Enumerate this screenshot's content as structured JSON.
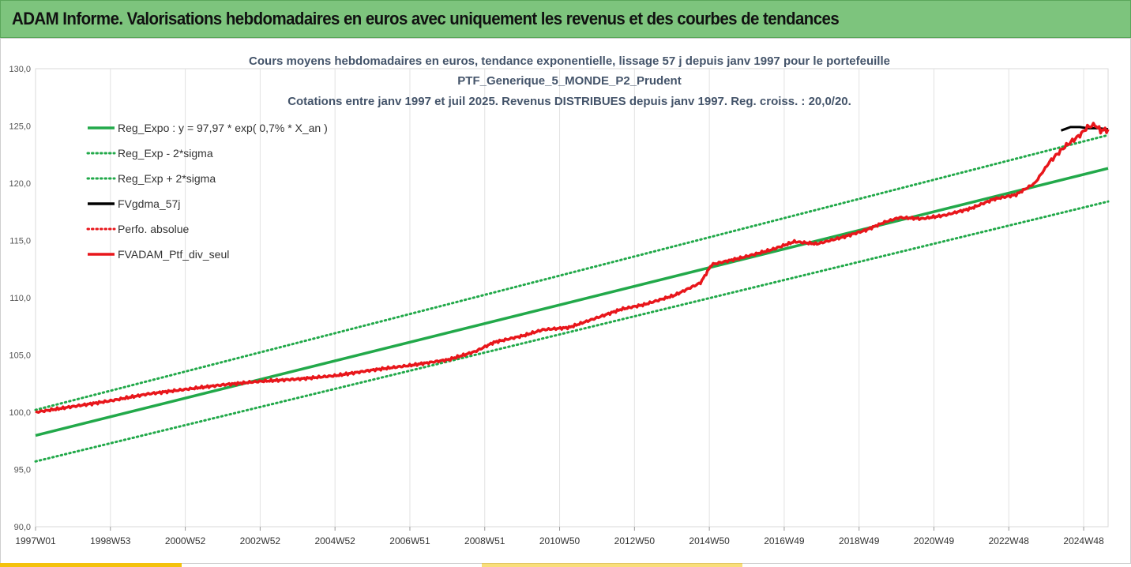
{
  "header": {
    "title": "ADAM Informe. Valorisations hebdomadaires en euros avec uniquement les revenus et des courbes de tendances"
  },
  "chart_data": {
    "type": "line",
    "title_lines": [
      "Cours moyens hebdomadaires en euros, tendance exponentielle, lissage 57 j depuis janv 1997 pour le portefeuille",
      "PTF_Generique_5_MONDE_P2_Prudent",
      "Cotations entre janv 1997 et juil 2025. Revenus DISTRIBUES depuis janv 1997. Reg. croiss. : 20,0/20."
    ],
    "ylim": [
      90,
      130
    ],
    "y_ticks": [
      "90,0",
      "95,0",
      "100,0",
      "105,0",
      "110,0",
      "115,0",
      "120,0",
      "125,0",
      "130,0"
    ],
    "x_ticks": [
      "1997W01",
      "1998W53",
      "2000W52",
      "2002W52",
      "2004W52",
      "2006W51",
      "2008W51",
      "2010W50",
      "2012W50",
      "2014W50",
      "2016W49",
      "2018W49",
      "2020W49",
      "2022W48",
      "2024W48"
    ],
    "x_range_years": [
      1997.0,
      2025.55
    ],
    "grid": "vertical",
    "legend_position": "top-left",
    "colors": {
      "trend": "#22a94a",
      "band": "#22a94a",
      "smoothed": "#000000",
      "perf": "#e8161b",
      "portfolio": "#e8161b"
    },
    "series": [
      {
        "name": "Reg_Expo : y = 97,97 * exp( 0,7% *  X_an )",
        "style": "solid-thick",
        "role": "trend",
        "points": [
          [
            1997.0,
            97.97
          ],
          [
            2025.55,
            121.3
          ]
        ]
      },
      {
        "name": "Reg_Exp - 2*sigma",
        "style": "dotted",
        "role": "band",
        "points": [
          [
            1997.0,
            95.7
          ],
          [
            2025.55,
            118.4
          ]
        ]
      },
      {
        "name": "Reg_Exp + 2*sigma",
        "style": "dotted",
        "role": "band",
        "points": [
          [
            1997.0,
            100.2
          ],
          [
            2025.55,
            124.2
          ]
        ]
      },
      {
        "name": "FVgdma_57j",
        "style": "solid-thick",
        "role": "smoothed",
        "points": [
          [
            2024.3,
            124.6
          ],
          [
            2024.55,
            124.9
          ],
          [
            2024.8,
            124.9
          ],
          [
            2025.0,
            124.8
          ],
          [
            2025.3,
            124.8
          ],
          [
            2025.55,
            124.7
          ]
        ]
      },
      {
        "name": "Perfo. absolue",
        "style": "dotted",
        "role": "perf",
        "points": []
      },
      {
        "name": "FVADAM_Ptf_div_seul",
        "style": "solid-thick",
        "role": "portfolio",
        "points": [
          [
            1997.0,
            100.0
          ],
          [
            1998.0,
            100.5
          ],
          [
            1999.0,
            101.0
          ],
          [
            2000.0,
            101.6
          ],
          [
            2001.0,
            102.0
          ],
          [
            2002.0,
            102.4
          ],
          [
            2003.0,
            102.7
          ],
          [
            2004.0,
            102.9
          ],
          [
            2005.0,
            103.2
          ],
          [
            2006.0,
            103.7
          ],
          [
            2007.0,
            104.1
          ],
          [
            2008.0,
            104.6
          ],
          [
            2008.7,
            105.3
          ],
          [
            2009.2,
            106.1
          ],
          [
            2010.0,
            106.7
          ],
          [
            2010.5,
            107.2
          ],
          [
            2011.2,
            107.4
          ],
          [
            2011.9,
            108.2
          ],
          [
            2012.6,
            109.0
          ],
          [
            2013.2,
            109.4
          ],
          [
            2014.0,
            110.2
          ],
          [
            2014.7,
            111.3
          ],
          [
            2015.0,
            112.9
          ],
          [
            2015.8,
            113.5
          ],
          [
            2016.6,
            114.2
          ],
          [
            2017.2,
            114.9
          ],
          [
            2017.8,
            114.7
          ],
          [
            2018.5,
            115.3
          ],
          [
            2019.1,
            115.9
          ],
          [
            2019.6,
            116.6
          ],
          [
            2020.0,
            117.0
          ],
          [
            2020.6,
            116.9
          ],
          [
            2021.2,
            117.2
          ],
          [
            2021.9,
            117.8
          ],
          [
            2022.5,
            118.6
          ],
          [
            2023.1,
            119.0
          ],
          [
            2023.6,
            120.0
          ],
          [
            2024.0,
            121.9
          ],
          [
            2024.4,
            123.2
          ],
          [
            2024.8,
            124.2
          ],
          [
            2025.0,
            124.9
          ],
          [
            2025.2,
            125.1
          ],
          [
            2025.35,
            124.6
          ],
          [
            2025.55,
            124.7
          ]
        ]
      }
    ]
  }
}
